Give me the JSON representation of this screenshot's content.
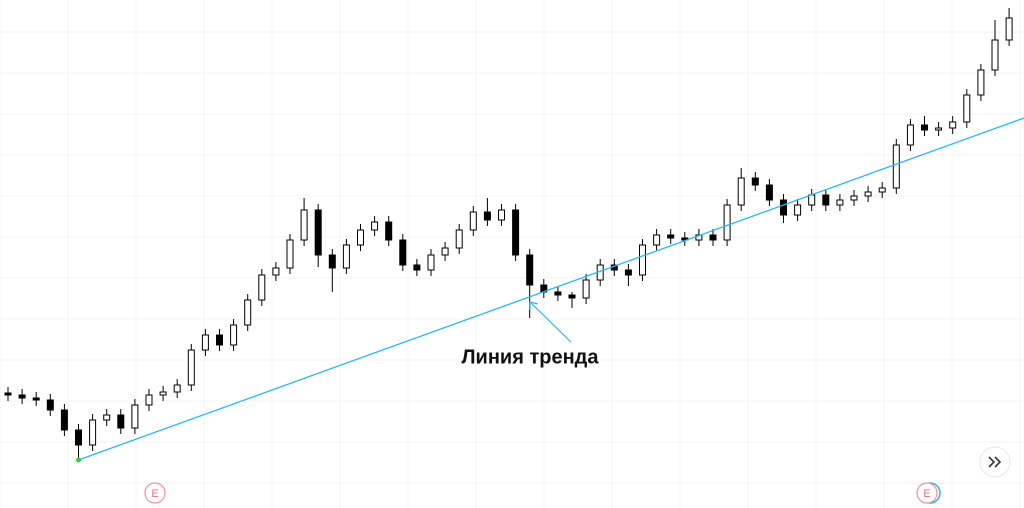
{
  "chart_data": {
    "type": "candlestick",
    "ylim": [
      0,
      508
    ],
    "up_color": "#ffffff",
    "down_color": "#000000",
    "edge_color": "#000000",
    "series": [
      {
        "open": [
          115,
          113,
          110,
          108,
          98,
          78,
          63,
          88,
          93,
          80,
          103,
          113,
          116,
          123,
          158,
          173,
          163,
          183,
          208,
          233,
          240,
          268,
          298,
          253,
          240,
          263,
          278,
          286,
          268,
          243,
          238,
          253,
          260,
          278,
          296,
          288,
          298,
          253,
          223,
          216,
          213,
          210,
          228,
          243,
          238,
          233,
          263,
          273,
          270,
          268,
          273,
          268,
          303,
          330,
          323,
          308,
          293,
          303,
          313,
          303,
          308,
          312,
          316,
          320,
          363,
          383,
          378,
          380,
          386,
          413,
          438,
          468
        ],
        "high": [
          121,
          119,
          116,
          114,
          104,
          84,
          94,
          99,
          99,
          109,
          119,
          122,
          129,
          164,
          179,
          179,
          189,
          214,
          239,
          246,
          274,
          310,
          304,
          259,
          269,
          284,
          292,
          292,
          274,
          249,
          259,
          266,
          284,
          302,
          310,
          304,
          304,
          259,
          229,
          222,
          216,
          234,
          249,
          249,
          244,
          269,
          279,
          279,
          276,
          279,
          279,
          309,
          340,
          336,
          329,
          314,
          309,
          319,
          319,
          314,
          318,
          322,
          326,
          369,
          389,
          392,
          386,
          392,
          419,
          444,
          488,
          500
        ],
        "low": [
          107,
          104,
          102,
          92,
          72,
          48,
          57,
          82,
          74,
          74,
          97,
          107,
          110,
          117,
          152,
          157,
          157,
          177,
          202,
          227,
          234,
          262,
          241,
          216,
          234,
          257,
          272,
          262,
          237,
          232,
          232,
          247,
          254,
          272,
          282,
          282,
          247,
          190,
          210,
          207,
          200,
          204,
          222,
          232,
          222,
          227,
          257,
          264,
          262,
          262,
          262,
          262,
          297,
          317,
          302,
          285,
          287,
          297,
          297,
          297,
          302,
          306,
          310,
          314,
          357,
          372,
          372,
          374,
          380,
          407,
          432,
          462
        ],
        "close": [
          113,
          110,
          108,
          98,
          78,
          63,
          88,
          93,
          80,
          103,
          113,
          116,
          123,
          158,
          173,
          163,
          183,
          208,
          233,
          240,
          268,
          298,
          253,
          240,
          263,
          278,
          286,
          268,
          243,
          238,
          253,
          260,
          278,
          296,
          288,
          298,
          253,
          223,
          216,
          213,
          210,
          228,
          243,
          238,
          233,
          263,
          273,
          270,
          268,
          273,
          268,
          303,
          330,
          323,
          308,
          293,
          303,
          313,
          303,
          308,
          312,
          316,
          320,
          363,
          383,
          378,
          380,
          386,
          413,
          438,
          468,
          490
        ]
      }
    ],
    "trend_line": {
      "start": 48,
      "end": 390,
      "color": "#29b6f6"
    },
    "annotation": "Линия тренда",
    "events": [
      "E",
      "E"
    ],
    "grid": true
  }
}
